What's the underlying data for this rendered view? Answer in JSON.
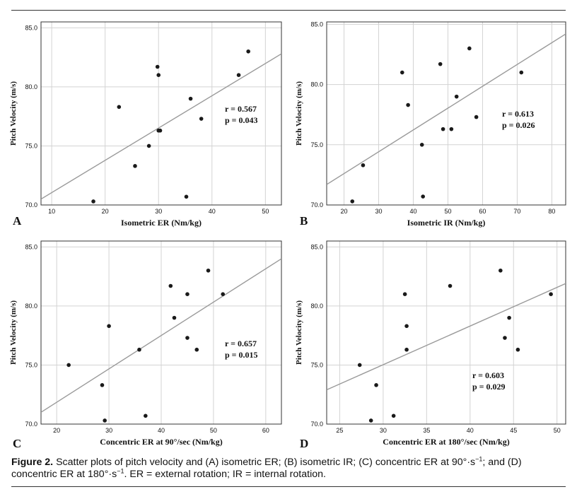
{
  "caption": {
    "label": "Figure 2.",
    "text_1": " Scatter plots of pitch velocity and (A) isometric ER; (B) isometric IR; (C) concentric ER at 90°·s",
    "exp_1": "−1",
    "text_2": "; and (D) concentric ER at 180°·s",
    "exp_2": "−1",
    "text_3": ". ER = external rotation; IR = internal rotation."
  },
  "colors": {
    "points": "#1a1a1a",
    "fit_line": "#9a9a9a",
    "grid": "#d3d3d3",
    "frame": "#333333",
    "text": "#111111"
  },
  "chart_data": [
    {
      "panel": "A",
      "type": "scatter",
      "xlabel": "Isometric ER (Nm/kg)",
      "ylabel": "Pitch Velocity (m/s)",
      "xlim": [
        8,
        53
      ],
      "ylim": [
        70,
        85.5
      ],
      "xticks": [
        10,
        20,
        30,
        40,
        50
      ],
      "yticks": [
        70,
        75,
        80,
        85
      ],
      "grid": true,
      "points": [
        {
          "x": 17.8,
          "y": 70.3
        },
        {
          "x": 22.6,
          "y": 78.3
        },
        {
          "x": 25.6,
          "y": 73.3
        },
        {
          "x": 28.2,
          "y": 75.0
        },
        {
          "x": 29.8,
          "y": 81.7
        },
        {
          "x": 30.0,
          "y": 81.0
        },
        {
          "x": 30.0,
          "y": 76.3
        },
        {
          "x": 30.3,
          "y": 76.3
        },
        {
          "x": 35.2,
          "y": 70.7
        },
        {
          "x": 36.0,
          "y": 79.0
        },
        {
          "x": 38.0,
          "y": 77.3
        },
        {
          "x": 45.0,
          "y": 81.0
        },
        {
          "x": 46.8,
          "y": 83.0
        }
      ],
      "fit_line": [
        {
          "x": 8,
          "y": 70.5
        },
        {
          "x": 53,
          "y": 82.8
        }
      ],
      "stats": [
        "r = 0.567",
        "p = 0.043"
      ]
    },
    {
      "panel": "B",
      "type": "scatter",
      "xlabel": "Isometric IR (Nm/kg)",
      "ylabel": "Pitch Velocity (m/s)",
      "xlim": [
        15,
        84
      ],
      "ylim": [
        70,
        85.2
      ],
      "xticks": [
        20,
        30,
        40,
        50,
        60,
        70,
        80
      ],
      "yticks": [
        70,
        75,
        80,
        85
      ],
      "grid": true,
      "points": [
        {
          "x": 22.4,
          "y": 70.3
        },
        {
          "x": 25.5,
          "y": 73.3
        },
        {
          "x": 36.8,
          "y": 81.0
        },
        {
          "x": 38.5,
          "y": 78.3
        },
        {
          "x": 42.5,
          "y": 75.0
        },
        {
          "x": 42.8,
          "y": 70.7
        },
        {
          "x": 47.8,
          "y": 81.7
        },
        {
          "x": 48.6,
          "y": 76.3
        },
        {
          "x": 51.0,
          "y": 76.3
        },
        {
          "x": 52.5,
          "y": 79.0
        },
        {
          "x": 56.2,
          "y": 83.0
        },
        {
          "x": 58.2,
          "y": 77.3
        },
        {
          "x": 71.2,
          "y": 81.0
        }
      ],
      "fit_line": [
        {
          "x": 15,
          "y": 71.7
        },
        {
          "x": 84,
          "y": 84.2
        }
      ],
      "stats": [
        "r = 0.613",
        "p = 0.026"
      ]
    },
    {
      "panel": "C",
      "type": "scatter",
      "xlabel": "Concentric ER at 90°/sec (Nm/kg)",
      "ylabel": "Pitch Velocity (m/s)",
      "xlim": [
        17,
        63
      ],
      "ylim": [
        70,
        85.5
      ],
      "xticks": [
        20,
        30,
        40,
        50,
        60
      ],
      "yticks": [
        70,
        75,
        80,
        85
      ],
      "grid": true,
      "points": [
        {
          "x": 22.3,
          "y": 75.0
        },
        {
          "x": 28.7,
          "y": 73.3
        },
        {
          "x": 29.2,
          "y": 70.3
        },
        {
          "x": 30.0,
          "y": 78.3
        },
        {
          "x": 35.8,
          "y": 76.3
        },
        {
          "x": 37.0,
          "y": 70.7
        },
        {
          "x": 41.8,
          "y": 81.7
        },
        {
          "x": 42.5,
          "y": 79.0
        },
        {
          "x": 45.0,
          "y": 81.0
        },
        {
          "x": 45.0,
          "y": 77.3
        },
        {
          "x": 46.8,
          "y": 76.3
        },
        {
          "x": 49.0,
          "y": 83.0
        },
        {
          "x": 51.8,
          "y": 81.0
        }
      ],
      "fit_line": [
        {
          "x": 17,
          "y": 71.0
        },
        {
          "x": 63,
          "y": 84.0
        }
      ],
      "stats": [
        "r = 0.657",
        "p = 0.015"
      ]
    },
    {
      "panel": "D",
      "type": "scatter",
      "xlabel": "Concentric ER at 180°/sec (Nm/kg)",
      "ylabel": "Pitch Velocity (m/s)",
      "xlim": [
        23.5,
        51
      ],
      "ylim": [
        70,
        85.5
      ],
      "xticks": [
        25,
        30,
        35,
        40,
        45,
        50
      ],
      "yticks": [
        70,
        75,
        80,
        85
      ],
      "grid": true,
      "points": [
        {
          "x": 27.3,
          "y": 75.0
        },
        {
          "x": 28.6,
          "y": 70.3
        },
        {
          "x": 29.2,
          "y": 73.3
        },
        {
          "x": 31.2,
          "y": 70.7
        },
        {
          "x": 32.5,
          "y": 81.0
        },
        {
          "x": 32.7,
          "y": 78.3
        },
        {
          "x": 32.7,
          "y": 76.3
        },
        {
          "x": 37.7,
          "y": 81.7
        },
        {
          "x": 43.5,
          "y": 83.0
        },
        {
          "x": 44.0,
          "y": 77.3
        },
        {
          "x": 44.5,
          "y": 79.0
        },
        {
          "x": 45.5,
          "y": 76.3
        },
        {
          "x": 49.3,
          "y": 81.0
        }
      ],
      "fit_line": [
        {
          "x": 23.5,
          "y": 72.9
        },
        {
          "x": 51,
          "y": 81.9
        }
      ],
      "stats": [
        "r = 0.603",
        "p = 0.029"
      ]
    }
  ]
}
